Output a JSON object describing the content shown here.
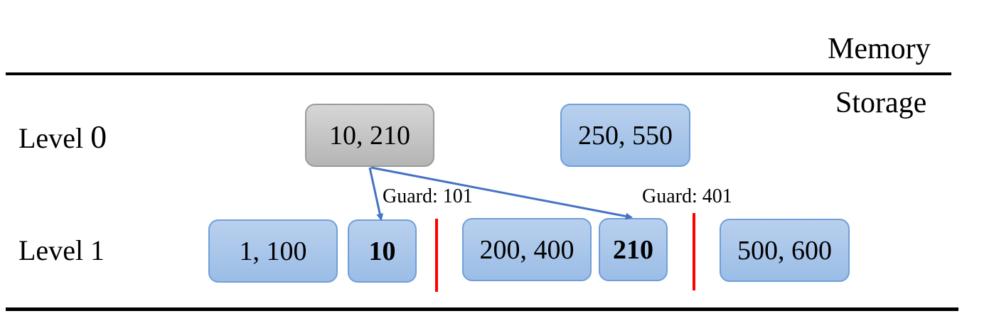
{
  "regions": {
    "memory": "Memory",
    "storage": "Storage"
  },
  "levels": {
    "level0": {
      "text": "Level ",
      "number": "0"
    },
    "level1": {
      "text": "Level 1"
    }
  },
  "level0_files": {
    "gray_file": "10, 210",
    "blue_file": "250, 550"
  },
  "level1_files": {
    "file_a": "1, 100",
    "file_b": "10",
    "file_c": "200, 400",
    "file_d": "210",
    "file_e": "500, 600"
  },
  "guards": {
    "guard_1": "Guard: 101",
    "guard_2": "Guard: 401"
  },
  "colors": {
    "guard_line": "#ff0000",
    "arrow": "#4472c4",
    "file_fill": "#9bbde6",
    "file_border": "#6f9fd8",
    "compacting_file_fill": "#b5b5b5"
  }
}
